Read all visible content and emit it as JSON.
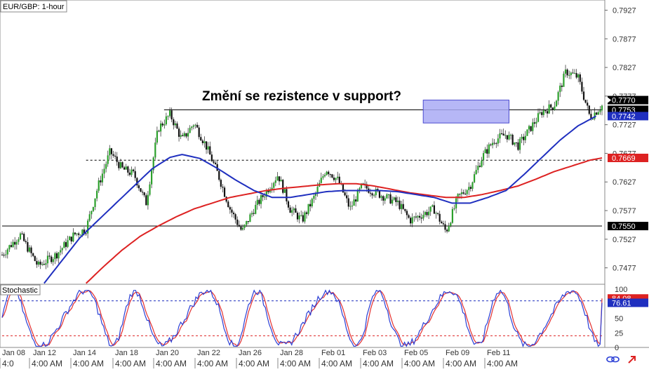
{
  "symbol_label": "EUR/GBP: 1-hour",
  "indicator_label": "Stochastic",
  "annotation": "Změní se rezistence v support?",
  "colors": {
    "bull": "#2ca02c",
    "bear": "#111111",
    "ma_fast": "#1f2fbf",
    "ma_slow": "#dd2222",
    "stoch_k": "#2b3fd6",
    "stoch_d": "#e33030",
    "box_fill": "#a9aaf5",
    "box_stroke": "#4a4ad0",
    "level_line": "#000000",
    "stoch_upper": "#1f2fbf",
    "stoch_lower": "#dd2222"
  },
  "price_axis_ticks": [
    "0.7927",
    "0.7877",
    "0.7827",
    "0.7777",
    "0.7727",
    "0.7677",
    "0.7627",
    "0.7577",
    "0.7527",
    "0.7477"
  ],
  "price_axis_badges": [
    {
      "text": "0.7770",
      "color": "#000000",
      "value": 0.777
    },
    {
      "text": "0.7753",
      "color": "#000000",
      "value": 0.7753
    },
    {
      "text": "0.7742",
      "color": "#1f2fbf",
      "value": 0.7742
    },
    {
      "text": "0.7669",
      "color": "#dd2222",
      "value": 0.7669
    },
    {
      "text": "0.7550",
      "color": "#000000",
      "value": 0.755
    }
  ],
  "stoch_axis_ticks": [
    "100",
    "50",
    "25",
    "0"
  ],
  "stoch_axis_badges": [
    {
      "text": "84.08",
      "color": "#dd2222",
      "value": 84.08
    },
    {
      "text": "76.61",
      "color": "#1f2fbf",
      "value": 76.61
    }
  ],
  "date_labels": [
    "Jan 08",
    "Jan 12",
    "Jan 14",
    "Jan 18",
    "Jan 20",
    "Jan 22",
    "Jan 26",
    "Jan 28",
    "Feb 01",
    "Feb 03",
    "Feb 05",
    "Feb 09",
    "Feb 11"
  ],
  "time_labels": [
    "4:0",
    "4:00 AM",
    "4:00 AM",
    "4:00 AM",
    "4:00 AM",
    "4:00 AM",
    "4:00 AM",
    "4:00 AM",
    "4:00 AM",
    "4:00 AM",
    "4:00 AM",
    "4:00 AM",
    "4:00 AM"
  ],
  "icons": [
    "link-icon",
    "arrow-icon"
  ],
  "chart_data": {
    "type": "candlestick",
    "title": "EUR/GBP: 1-hour",
    "price_range": [
      0.7452,
      0.7935
    ],
    "key_levels": [
      {
        "value": 0.7753,
        "style": "solid"
      },
      {
        "value": 0.7665,
        "style": "dashed"
      },
      {
        "value": 0.755,
        "style": "solid"
      }
    ],
    "highlight_zone": {
      "from": 0.773,
      "to": 0.777,
      "start_date": "Feb 05",
      "end_date": "Feb 11"
    },
    "close_anchors": [
      [
        0,
        0.75
      ],
      [
        3,
        0.7535
      ],
      [
        6,
        0.748
      ],
      [
        9,
        0.75
      ],
      [
        12,
        0.7535
      ],
      [
        14,
        0.7545
      ],
      [
        16,
        0.762
      ],
      [
        18,
        0.768
      ],
      [
        20,
        0.765
      ],
      [
        22,
        0.764
      ],
      [
        24,
        0.759
      ],
      [
        26,
        0.772
      ],
      [
        28,
        0.7745
      ],
      [
        30,
        0.77
      ],
      [
        32,
        0.773
      ],
      [
        34,
        0.769
      ],
      [
        36,
        0.764
      ],
      [
        38,
        0.758
      ],
      [
        40,
        0.754
      ],
      [
        42,
        0.758
      ],
      [
        44,
        0.761
      ],
      [
        46,
        0.764
      ],
      [
        48,
        0.758
      ],
      [
        50,
        0.756
      ],
      [
        52,
        0.76
      ],
      [
        54,
        0.765
      ],
      [
        56,
        0.763
      ],
      [
        58,
        0.758
      ],
      [
        60,
        0.762
      ],
      [
        62,
        0.761
      ],
      [
        64,
        0.76
      ],
      [
        66,
        0.759
      ],
      [
        68,
        0.756
      ],
      [
        70,
        0.757
      ],
      [
        72,
        0.758
      ],
      [
        74,
        0.754
      ],
      [
        76,
        0.76
      ],
      [
        78,
        0.762
      ],
      [
        80,
        0.767
      ],
      [
        82,
        0.77
      ],
      [
        84,
        0.771
      ],
      [
        86,
        0.769
      ],
      [
        88,
        0.772
      ],
      [
        90,
        0.775
      ],
      [
        92,
        0.776
      ],
      [
        94,
        0.782
      ],
      [
        96,
        0.781
      ],
      [
        98,
        0.774
      ],
      [
        100,
        0.776
      ]
    ],
    "ma_fast_anchors": [
      [
        7,
        0.745
      ],
      [
        10,
        0.749
      ],
      [
        13,
        0.753
      ],
      [
        16,
        0.756
      ],
      [
        19,
        0.759
      ],
      [
        22,
        0.762
      ],
      [
        25,
        0.765
      ],
      [
        28,
        0.767
      ],
      [
        30,
        0.7675
      ],
      [
        33,
        0.7668
      ],
      [
        36,
        0.765
      ],
      [
        39,
        0.763
      ],
      [
        42,
        0.7612
      ],
      [
        45,
        0.76
      ],
      [
        48,
        0.76
      ],
      [
        51,
        0.7605
      ],
      [
        54,
        0.761
      ],
      [
        57,
        0.7612
      ],
      [
        60,
        0.7612
      ],
      [
        63,
        0.7612
      ],
      [
        66,
        0.761
      ],
      [
        69,
        0.7605
      ],
      [
        72,
        0.76
      ],
      [
        75,
        0.759
      ],
      [
        78,
        0.759
      ],
      [
        81,
        0.76
      ],
      [
        84,
        0.7612
      ],
      [
        87,
        0.764
      ],
      [
        90,
        0.767
      ],
      [
        93,
        0.77
      ],
      [
        96,
        0.7725
      ],
      [
        99,
        0.7742
      ]
    ],
    "ma_slow_anchors": [
      [
        14,
        0.745
      ],
      [
        17,
        0.748
      ],
      [
        20,
        0.7508
      ],
      [
        23,
        0.7532
      ],
      [
        26,
        0.755
      ],
      [
        29,
        0.7566
      ],
      [
        32,
        0.758
      ],
      [
        35,
        0.759
      ],
      [
        38,
        0.76
      ],
      [
        41,
        0.7606
      ],
      [
        44,
        0.7612
      ],
      [
        47,
        0.7616
      ],
      [
        50,
        0.7619
      ],
      [
        53,
        0.7622
      ],
      [
        56,
        0.7624
      ],
      [
        59,
        0.7624
      ],
      [
        62,
        0.762
      ],
      [
        65,
        0.7614
      ],
      [
        68,
        0.7608
      ],
      [
        71,
        0.7604
      ],
      [
        74,
        0.76
      ],
      [
        77,
        0.76
      ],
      [
        80,
        0.7605
      ],
      [
        83,
        0.7612
      ],
      [
        86,
        0.762
      ],
      [
        89,
        0.7632
      ],
      [
        92,
        0.7645
      ],
      [
        95,
        0.7655
      ],
      [
        98,
        0.7665
      ],
      [
        100,
        0.7669
      ]
    ],
    "stochastic": {
      "range": [
        0,
        100
      ],
      "levels": [
        80,
        20
      ],
      "last_k": 76.61,
      "last_d": 84.08
    }
  }
}
